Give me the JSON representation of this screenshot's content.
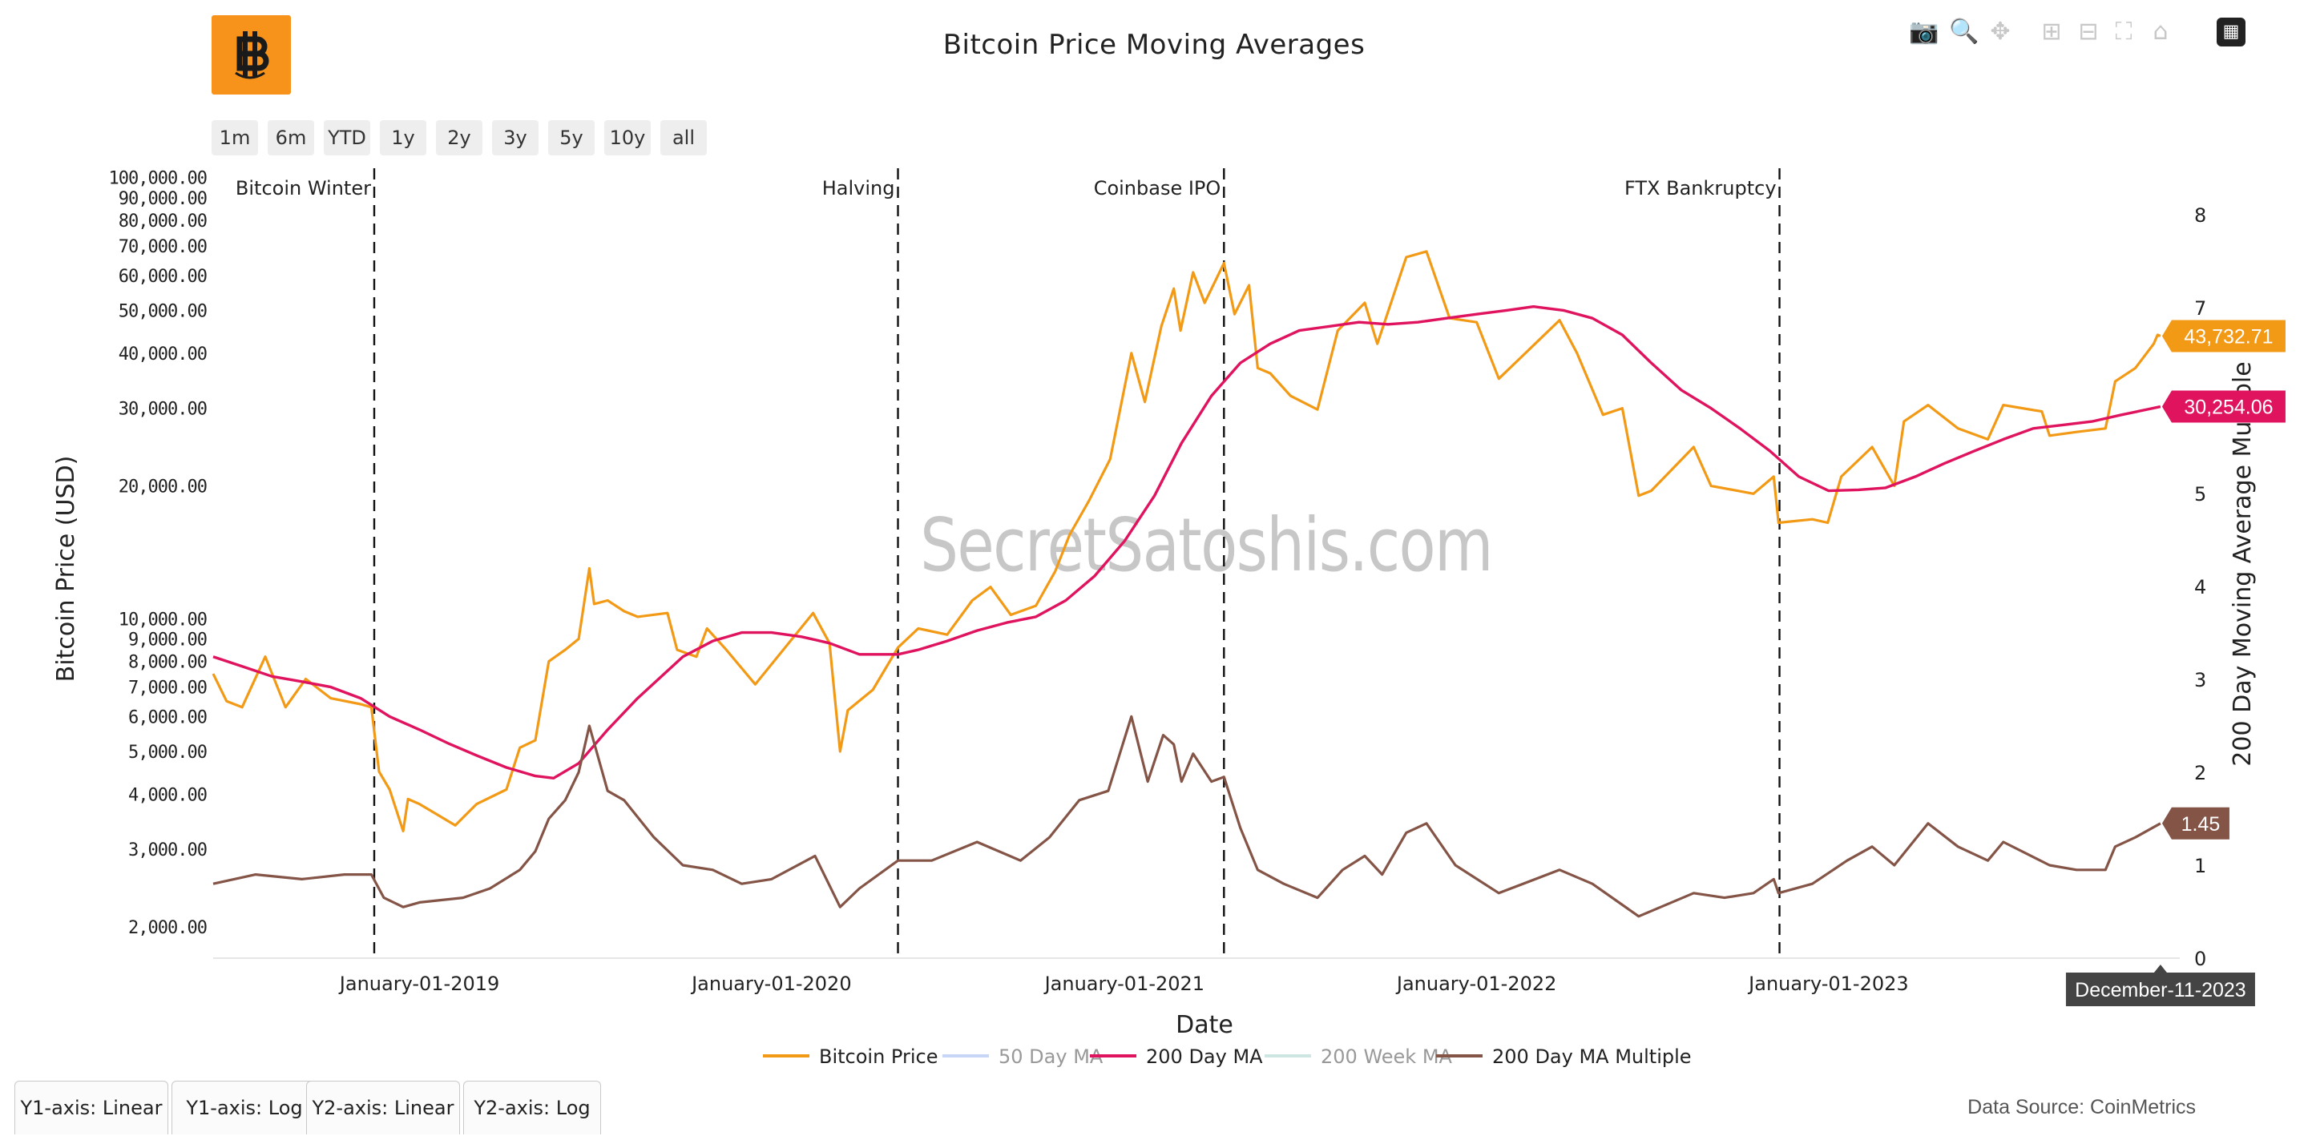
{
  "window": {
    "title": "Bitcoin Price Moving Averages"
  },
  "toolbar": {
    "icons": [
      "camera-icon",
      "zoom-icon",
      "pan-icon",
      "zoom-in-icon",
      "zoom-out-icon",
      "autoscale-icon",
      "reset-axes-icon",
      "bar-chart-icon"
    ]
  },
  "range_buttons": [
    "1m",
    "6m",
    "YTD",
    "1y",
    "2y",
    "3y",
    "5y",
    "10y",
    "all"
  ],
  "axis_tabs": [
    "Y1-axis: Linear",
    "Y1-axis: Log",
    "Y2-axis: Linear",
    "Y2-axis: Log"
  ],
  "source": "Data Source: CoinMetrics",
  "watermark": "SecretSatoshis.com",
  "colors": {
    "price": "#f29a16",
    "ma50": "#9bb6ef",
    "ma200": "#e0135f",
    "ma200w": "#a7d3cb",
    "multiple": "#845447",
    "logo": "#f7931a"
  },
  "chart_data": {
    "type": "line",
    "title": "Bitcoin Price Moving Averages",
    "xlabel": "Date",
    "ylabel": "Bitcoin Price (USD)",
    "y2label": "200 Day Moving Average Multiple",
    "yscale": "log",
    "ylim": [
      1700,
      105000
    ],
    "y2lim": [
      0,
      8.5
    ],
    "x_range": [
      "2018-06-01",
      "2023-12-31"
    ],
    "x_tick_labels": [
      "January-01-2019",
      "January-01-2020",
      "January-01-2021",
      "January-01-2022",
      "January-01-2023"
    ],
    "y_tick_labels": [
      "2,000.00",
      "3,000.00",
      "4,000.00",
      "5,000.00",
      "6,000.00",
      "7,000.00",
      "8,000.00",
      "9,000.00",
      "10,000.00",
      "20,000.00",
      "30,000.00",
      "40,000.00",
      "50,000.00",
      "60,000.00",
      "70,000.00",
      "80,000.00",
      "90,000.00",
      "100,000.00"
    ],
    "y2_tick_labels": [
      "0",
      "1",
      "2",
      "3",
      "4",
      "5",
      "6",
      "7",
      "8"
    ],
    "events": [
      {
        "date": "2018-11-15",
        "label": "Bitcoin Winter"
      },
      {
        "date": "2020-05-11",
        "label": "Halving"
      },
      {
        "date": "2021-04-14",
        "label": "Coinbase IPO"
      },
      {
        "date": "2022-11-11",
        "label": "FTX Bankruptcy"
      }
    ],
    "legend": [
      {
        "name": "Bitcoin Price",
        "visible": true
      },
      {
        "name": "50 Day MA",
        "visible": false
      },
      {
        "name": "200 Day MA",
        "visible": true
      },
      {
        "name": "200 Week MA",
        "visible": false
      },
      {
        "name": "200 Day MA Multiple",
        "visible": true
      }
    ],
    "hover_date": "December-11-2023",
    "series": [
      {
        "name": "Bitcoin Price",
        "axis": "y",
        "points": [
          [
            "2018-06-01",
            7500
          ],
          [
            "2018-06-15",
            6500
          ],
          [
            "2018-07-01",
            6300
          ],
          [
            "2018-07-25",
            8200
          ],
          [
            "2018-08-15",
            6300
          ],
          [
            "2018-09-05",
            7300
          ],
          [
            "2018-10-01",
            6600
          ],
          [
            "2018-11-01",
            6400
          ],
          [
            "2018-11-12",
            6300
          ],
          [
            "2018-11-20",
            4500
          ],
          [
            "2018-12-01",
            4100
          ],
          [
            "2018-12-15",
            3300
          ],
          [
            "2018-12-20",
            3900
          ],
          [
            "2019-01-01",
            3800
          ],
          [
            "2019-02-07",
            3400
          ],
          [
            "2019-03-01",
            3800
          ],
          [
            "2019-04-01",
            4100
          ],
          [
            "2019-04-15",
            5100
          ],
          [
            "2019-05-01",
            5300
          ],
          [
            "2019-05-15",
            8000
          ],
          [
            "2019-06-01",
            8500
          ],
          [
            "2019-06-15",
            9000
          ],
          [
            "2019-06-26",
            13000
          ],
          [
            "2019-07-01",
            10800
          ],
          [
            "2019-07-15",
            11000
          ],
          [
            "2019-08-01",
            10400
          ],
          [
            "2019-08-15",
            10100
          ],
          [
            "2019-09-15",
            10300
          ],
          [
            "2019-09-25",
            8500
          ],
          [
            "2019-10-15",
            8200
          ],
          [
            "2019-10-26",
            9500
          ],
          [
            "2019-11-15",
            8500
          ],
          [
            "2019-12-15",
            7100
          ],
          [
            "2020-01-15",
            8600
          ],
          [
            "2020-02-13",
            10300
          ],
          [
            "2020-03-01",
            8800
          ],
          [
            "2020-03-12",
            5000
          ],
          [
            "2020-03-20",
            6200
          ],
          [
            "2020-04-15",
            6900
          ],
          [
            "2020-05-11",
            8600
          ],
          [
            "2020-06-01",
            9500
          ],
          [
            "2020-07-01",
            9200
          ],
          [
            "2020-07-27",
            11000
          ],
          [
            "2020-08-15",
            11800
          ],
          [
            "2020-09-05",
            10200
          ],
          [
            "2020-10-01",
            10700
          ],
          [
            "2020-10-21",
            12800
          ],
          [
            "2020-11-05",
            15500
          ],
          [
            "2020-11-25",
            18500
          ],
          [
            "2020-12-17",
            23000
          ],
          [
            "2021-01-08",
            40000
          ],
          [
            "2021-01-22",
            31000
          ],
          [
            "2021-02-08",
            46000
          ],
          [
            "2021-02-21",
            56000
          ],
          [
            "2021-02-28",
            45000
          ],
          [
            "2021-03-13",
            61000
          ],
          [
            "2021-03-25",
            52000
          ],
          [
            "2021-04-14",
            64000
          ],
          [
            "2021-04-25",
            49000
          ],
          [
            "2021-05-10",
            57000
          ],
          [
            "2021-05-19",
            37000
          ],
          [
            "2021-06-01",
            36000
          ],
          [
            "2021-06-22",
            32000
          ],
          [
            "2021-07-20",
            29800
          ],
          [
            "2021-08-10",
            45000
          ],
          [
            "2021-09-07",
            52000
          ],
          [
            "2021-09-20",
            42000
          ],
          [
            "2021-10-20",
            66000
          ],
          [
            "2021-11-10",
            68000
          ],
          [
            "2021-12-04",
            48000
          ],
          [
            "2022-01-01",
            47000
          ],
          [
            "2022-01-24",
            35000
          ],
          [
            "2022-03-28",
            47500
          ],
          [
            "2022-04-15",
            40000
          ],
          [
            "2022-05-12",
            29000
          ],
          [
            "2022-06-01",
            30000
          ],
          [
            "2022-06-18",
            19000
          ],
          [
            "2022-07-01",
            19500
          ],
          [
            "2022-08-14",
            24500
          ],
          [
            "2022-09-01",
            20000
          ],
          [
            "2022-10-15",
            19200
          ],
          [
            "2022-11-05",
            21000
          ],
          [
            "2022-11-10",
            16500
          ],
          [
            "2022-12-15",
            16800
          ],
          [
            "2022-12-31",
            16500
          ],
          [
            "2023-01-14",
            21000
          ],
          [
            "2023-02-15",
            24500
          ],
          [
            "2023-03-10",
            20000
          ],
          [
            "2023-03-20",
            28000
          ],
          [
            "2023-04-14",
            30500
          ],
          [
            "2023-05-15",
            27000
          ],
          [
            "2023-06-15",
            25500
          ],
          [
            "2023-07-01",
            30500
          ],
          [
            "2023-08-10",
            29500
          ],
          [
            "2023-08-18",
            26000
          ],
          [
            "2023-09-15",
            26500
          ],
          [
            "2023-10-15",
            27000
          ],
          [
            "2023-10-25",
            34500
          ],
          [
            "2023-11-15",
            37000
          ],
          [
            "2023-12-04",
            42000
          ],
          [
            "2023-12-08",
            44000
          ],
          [
            "2023-12-11",
            43732.71
          ]
        ]
      },
      {
        "name": "200 Day MA",
        "axis": "y",
        "points": [
          [
            "2018-06-01",
            8200
          ],
          [
            "2018-07-01",
            7800
          ],
          [
            "2018-08-01",
            7400
          ],
          [
            "2018-09-01",
            7200
          ],
          [
            "2018-10-01",
            7000
          ],
          [
            "2018-11-01",
            6600
          ],
          [
            "2018-12-01",
            6000
          ],
          [
            "2019-01-01",
            5600
          ],
          [
            "2019-02-01",
            5200
          ],
          [
            "2019-03-01",
            4900
          ],
          [
            "2019-04-01",
            4600
          ],
          [
            "2019-05-01",
            4400
          ],
          [
            "2019-05-20",
            4350
          ],
          [
            "2019-06-15",
            4700
          ],
          [
            "2019-07-15",
            5600
          ],
          [
            "2019-08-15",
            6600
          ],
          [
            "2019-10-01",
            8200
          ],
          [
            "2019-11-01",
            8900
          ],
          [
            "2019-12-01",
            9300
          ],
          [
            "2020-01-01",
            9300
          ],
          [
            "2020-02-01",
            9100
          ],
          [
            "2020-03-01",
            8800
          ],
          [
            "2020-04-01",
            8300
          ],
          [
            "2020-05-11",
            8300
          ],
          [
            "2020-06-01",
            8500
          ],
          [
            "2020-07-01",
            8900
          ],
          [
            "2020-08-01",
            9400
          ],
          [
            "2020-09-01",
            9800
          ],
          [
            "2020-10-01",
            10100
          ],
          [
            "2020-11-01",
            11000
          ],
          [
            "2020-12-01",
            12500
          ],
          [
            "2021-01-01",
            15000
          ],
          [
            "2021-02-01",
            19000
          ],
          [
            "2021-03-01",
            25000
          ],
          [
            "2021-04-01",
            32000
          ],
          [
            "2021-05-01",
            38000
          ],
          [
            "2021-06-01",
            42000
          ],
          [
            "2021-07-01",
            45000
          ],
          [
            "2021-08-01",
            46000
          ],
          [
            "2021-09-01",
            47000
          ],
          [
            "2021-10-01",
            46500
          ],
          [
            "2021-11-01",
            47000
          ],
          [
            "2021-12-01",
            48000
          ],
          [
            "2022-01-01",
            49000
          ],
          [
            "2022-02-01",
            50000
          ],
          [
            "2022-03-01",
            51000
          ],
          [
            "2022-04-01",
            50000
          ],
          [
            "2022-05-01",
            48000
          ],
          [
            "2022-06-01",
            44000
          ],
          [
            "2022-07-01",
            38000
          ],
          [
            "2022-08-01",
            33000
          ],
          [
            "2022-09-01",
            30000
          ],
          [
            "2022-10-01",
            27000
          ],
          [
            "2022-11-01",
            24000
          ],
          [
            "2022-12-01",
            21000
          ],
          [
            "2023-01-01",
            19500
          ],
          [
            "2023-02-01",
            19600
          ],
          [
            "2023-03-01",
            19800
          ],
          [
            "2023-04-01",
            21000
          ],
          [
            "2023-05-01",
            22500
          ],
          [
            "2023-06-01",
            24000
          ],
          [
            "2023-07-01",
            25500
          ],
          [
            "2023-08-01",
            27000
          ],
          [
            "2023-09-01",
            27500
          ],
          [
            "2023-10-01",
            28000
          ],
          [
            "2023-11-01",
            29000
          ],
          [
            "2023-12-11",
            30254.06
          ]
        ]
      },
      {
        "name": "200 Day MA Multiple",
        "axis": "y2",
        "points": [
          [
            "2018-06-01",
            0.8
          ],
          [
            "2018-07-15",
            0.9
          ],
          [
            "2018-09-01",
            0.85
          ],
          [
            "2018-10-15",
            0.9
          ],
          [
            "2018-11-12",
            0.9
          ],
          [
            "2018-11-25",
            0.65
          ],
          [
            "2018-12-15",
            0.55
          ],
          [
            "2019-01-01",
            0.6
          ],
          [
            "2019-02-15",
            0.65
          ],
          [
            "2019-03-15",
            0.75
          ],
          [
            "2019-04-15",
            0.95
          ],
          [
            "2019-05-01",
            1.15
          ],
          [
            "2019-05-15",
            1.5
          ],
          [
            "2019-06-01",
            1.7
          ],
          [
            "2019-06-15",
            2.0
          ],
          [
            "2019-06-26",
            2.5
          ],
          [
            "2019-07-15",
            1.8
          ],
          [
            "2019-08-01",
            1.7
          ],
          [
            "2019-09-01",
            1.3
          ],
          [
            "2019-10-01",
            1.0
          ],
          [
            "2019-11-01",
            0.95
          ],
          [
            "2019-12-01",
            0.8
          ],
          [
            "2020-01-01",
            0.85
          ],
          [
            "2020-02-15",
            1.1
          ],
          [
            "2020-03-12",
            0.55
          ],
          [
            "2020-04-01",
            0.75
          ],
          [
            "2020-05-11",
            1.05
          ],
          [
            "2020-06-15",
            1.05
          ],
          [
            "2020-08-01",
            1.25
          ],
          [
            "2020-09-15",
            1.05
          ],
          [
            "2020-10-15",
            1.3
          ],
          [
            "2020-11-15",
            1.7
          ],
          [
            "2020-12-15",
            1.8
          ],
          [
            "2021-01-08",
            2.6
          ],
          [
            "2021-01-25",
            1.9
          ],
          [
            "2021-02-10",
            2.4
          ],
          [
            "2021-02-21",
            2.3
          ],
          [
            "2021-03-01",
            1.9
          ],
          [
            "2021-03-13",
            2.2
          ],
          [
            "2021-04-01",
            1.9
          ],
          [
            "2021-04-14",
            1.95
          ],
          [
            "2021-05-01",
            1.4
          ],
          [
            "2021-05-19",
            0.95
          ],
          [
            "2021-06-15",
            0.8
          ],
          [
            "2021-07-20",
            0.65
          ],
          [
            "2021-08-15",
            0.95
          ],
          [
            "2021-09-07",
            1.1
          ],
          [
            "2021-09-25",
            0.9
          ],
          [
            "2021-10-20",
            1.35
          ],
          [
            "2021-11-10",
            1.45
          ],
          [
            "2021-12-10",
            1.0
          ],
          [
            "2022-01-24",
            0.7
          ],
          [
            "2022-03-28",
            0.95
          ],
          [
            "2022-05-01",
            0.8
          ],
          [
            "2022-06-18",
            0.45
          ],
          [
            "2022-08-14",
            0.7
          ],
          [
            "2022-09-15",
            0.65
          ],
          [
            "2022-10-15",
            0.7
          ],
          [
            "2022-11-05",
            0.85
          ],
          [
            "2022-11-10",
            0.7
          ],
          [
            "2022-12-15",
            0.8
          ],
          [
            "2023-01-20",
            1.05
          ],
          [
            "2023-02-15",
            1.2
          ],
          [
            "2023-03-10",
            1.0
          ],
          [
            "2023-04-14",
            1.45
          ],
          [
            "2023-05-15",
            1.2
          ],
          [
            "2023-06-15",
            1.05
          ],
          [
            "2023-07-01",
            1.25
          ],
          [
            "2023-08-18",
            1.0
          ],
          [
            "2023-09-15",
            0.95
          ],
          [
            "2023-10-15",
            0.95
          ],
          [
            "2023-10-25",
            1.2
          ],
          [
            "2023-11-15",
            1.3
          ],
          [
            "2023-12-11",
            1.45
          ]
        ]
      }
    ],
    "end_labels": [
      {
        "series": "Bitcoin Price",
        "text": "43,732.71"
      },
      {
        "series": "200 Day MA",
        "text": "30,254.06"
      },
      {
        "series": "200 Day MA Multiple",
        "text": "1.45"
      }
    ]
  }
}
